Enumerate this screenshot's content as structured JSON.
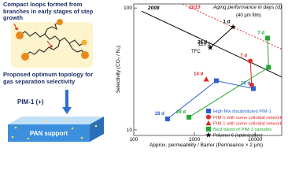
{
  "diagram": {
    "caption_top": "Compact loops formed from branches in early stages of step growth",
    "caption_mid": "Proposed optimum topology for gas separation selectivity",
    "polymer_label": "PIM-1 (+)",
    "support_label": "PAN support"
  },
  "chart_data": {
    "type": "scatter",
    "title": "Aging performance in days (d)",
    "x_label": "Approx. permeability / Barrer (Permeance × 2 μm)",
    "y_label": "Selectivity (CO₂ / N₂)",
    "xlim": [
      100,
      27500
    ],
    "ylim": [
      9,
      108
    ],
    "xticks": [
      100,
      1000,
      10000
    ],
    "yticks": [
      10,
      100
    ],
    "log_x": true,
    "log_y": true,
    "bounds": [
      {
        "name": "2008",
        "color": "#000000",
        "dash": false,
        "x": [
          135,
          27500
        ],
        "y": [
          94.2,
          27.2
        ]
      },
      {
        "name": "2019",
        "color": "#e03030",
        "dash": true,
        "x": [
          638,
          27500
        ],
        "y": [
          107.7,
          45.9
        ]
      }
    ],
    "series": [
      {
        "name": "High Mw disubstituted PIM-1",
        "color": "#2e5fd0",
        "marker": "square",
        "connect": true,
        "x": [
          360,
          2300,
          9400
        ],
        "y": [
          12.3,
          25.3,
          21.8
        ],
        "point_labels": [
          "28 d",
          null,
          "10 d"
        ]
      },
      {
        "name": "PIM-1 with some colloidal network",
        "color": "#e02828",
        "marker": "circle",
        "connect": true,
        "x": [
          8350,
          8800
        ],
        "y": [
          36.7,
          23.4
        ],
        "point_labels": [
          "7 d",
          null
        ]
      },
      {
        "name": "PIM-1 with some colloidal network",
        "color": "#e02828",
        "marker": "triangle",
        "connect": false,
        "x": [
          1570
        ],
        "y": [
          26.1
        ],
        "point_labels": [
          "14 d"
        ]
      },
      {
        "name": "Best blend of PIM-1 samples",
        "color": "#22a830",
        "marker": "square",
        "connect": true,
        "x": [
          16100,
          16700,
          811
        ],
        "y": [
          56.6,
          32.6,
          12.7
        ],
        "point_labels": [
          "7 d",
          null,
          "28 d"
        ]
      },
      {
        "name": "Polymer 6 (optimization)",
        "color": "#000000",
        "marker": "star",
        "connect": true,
        "x": [
          4330,
          1820
        ],
        "y": [
          69.8,
          47.3
        ],
        "point_labels": [
          "1 d",
          "28 d"
        ]
      }
    ],
    "annotations": [
      "(40 μm film)",
      "120 d",
      "TFC"
    ]
  }
}
